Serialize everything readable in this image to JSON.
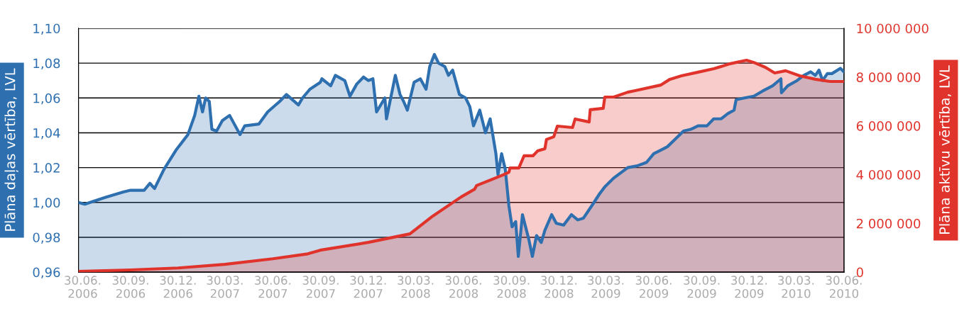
{
  "chart_data": {
    "type": "area",
    "ylabel": "Plāna daļas vērtība, LVL",
    "y2label": "Plāna aktīvu vērtība, LVL",
    "xlim": [
      "2006-06-22",
      "2010-06-30"
    ],
    "xticks": [
      {
        "value": "2006-06-30",
        "label": "30.06.\n2006"
      },
      {
        "value": "2006-09-30",
        "label": "30.09.\n2006"
      },
      {
        "value": "2006-12-30",
        "label": "30.12.\n2006"
      },
      {
        "value": "2007-03-30",
        "label": "30.03.\n2007"
      },
      {
        "value": "2007-06-30",
        "label": "30.06.\n2007"
      },
      {
        "value": "2007-09-30",
        "label": "30.09.\n2007"
      },
      {
        "value": "2007-12-30",
        "label": "30.12.\n2007"
      },
      {
        "value": "2008-03-30",
        "label": "30.03.\n2008"
      },
      {
        "value": "2008-06-30",
        "label": "30.06.\n2008"
      },
      {
        "value": "2008-09-30",
        "label": "30.09.\n2008"
      },
      {
        "value": "2008-12-30",
        "label": "30.12.\n2008"
      },
      {
        "value": "2009-03-30",
        "label": "30.03.\n2009"
      },
      {
        "value": "2009-06-30",
        "label": "30.06.\n2009"
      },
      {
        "value": "2009-09-30",
        "label": "30.09.\n2009"
      },
      {
        "value": "2009-12-30",
        "label": "30.12.\n2009"
      },
      {
        "value": "2010-03-30",
        "label": "30.03.\n2010"
      },
      {
        "value": "2010-06-30",
        "label": "30.06.\n2010"
      }
    ],
    "ylim": [
      0.96,
      1.1
    ],
    "yticks": [
      {
        "value": 0.96,
        "label": "0,96"
      },
      {
        "value": 0.98,
        "label": "0,98"
      },
      {
        "value": 1.0,
        "label": "1,00"
      },
      {
        "value": 1.02,
        "label": "1,02"
      },
      {
        "value": 1.04,
        "label": "1,04"
      },
      {
        "value": 1.06,
        "label": "1,06"
      },
      {
        "value": 1.08,
        "label": "1,08"
      },
      {
        "value": 1.1,
        "label": "1,10"
      }
    ],
    "y2lim": [
      0,
      10000000
    ],
    "y2ticks": [
      {
        "value": 0,
        "label": "0"
      },
      {
        "value": 2000000,
        "label": "2 000 000"
      },
      {
        "value": 4000000,
        "label": "4 000 000"
      },
      {
        "value": 6000000,
        "label": "6 000 000"
      },
      {
        "value": 8000000,
        "label": "8 000 000"
      },
      {
        "value": 10000000,
        "label": "10 000 000"
      }
    ],
    "grid": "y",
    "legend": false,
    "series": [
      {
        "color": "#2e6fb0",
        "axis": "y",
        "x": [
          "2006-06-22",
          "2006-07-04",
          "2006-08-13",
          "2006-09-16",
          "2006-09-30",
          "2006-10-26",
          "2006-11-06",
          "2006-11-15",
          "2006-12-03",
          "2006-12-26",
          "2007-01-18",
          "2007-01-31",
          "2007-02-08",
          "2007-02-15",
          "2007-02-21",
          "2007-02-28",
          "2007-03-05",
          "2007-03-14",
          "2007-03-25",
          "2007-04-08",
          "2007-04-28",
          "2007-05-07",
          "2007-06-03",
          "2007-06-20",
          "2007-07-13",
          "2007-07-26",
          "2007-08-18",
          "2007-08-26",
          "2007-09-09",
          "2007-09-29",
          "2007-10-02",
          "2007-10-19",
          "2007-10-28",
          "2007-11-15",
          "2007-11-25",
          "2007-12-08",
          "2007-12-21",
          "2007-12-30",
          "2008-01-08",
          "2008-01-15",
          "2008-01-31",
          "2008-02-03",
          "2008-02-20",
          "2008-02-29",
          "2008-03-07",
          "2008-03-14",
          "2008-03-27",
          "2008-04-08",
          "2008-04-19",
          "2008-04-26",
          "2008-05-05",
          "2008-05-13",
          "2008-05-25",
          "2008-06-01",
          "2008-06-09",
          "2008-06-22",
          "2008-07-04",
          "2008-07-12",
          "2008-07-19",
          "2008-07-31",
          "2008-08-11",
          "2008-08-20",
          "2008-08-31",
          "2008-09-04",
          "2008-09-11",
          "2008-09-18",
          "2008-09-25",
          "2008-10-01",
          "2008-10-08",
          "2008-10-13",
          "2008-10-21",
          "2008-11-02",
          "2008-11-09",
          "2008-11-17",
          "2008-11-26",
          "2008-12-03",
          "2008-12-16",
          "2008-12-25",
          "2009-01-08",
          "2009-01-23",
          "2009-02-04",
          "2009-02-15",
          "2009-03-05",
          "2009-03-18",
          "2009-03-28",
          "2009-04-14",
          "2009-05-11",
          "2009-05-29",
          "2009-06-16",
          "2009-06-30",
          "2009-07-13",
          "2009-07-26",
          "2009-08-09",
          "2009-08-26",
          "2009-09-09",
          "2009-09-23",
          "2009-10-10",
          "2009-10-23",
          "2009-11-06",
          "2009-11-19",
          "2009-12-01",
          "2009-12-05",
          "2009-12-21",
          "2010-01-08",
          "2010-01-25",
          "2010-02-13",
          "2010-03-01",
          "2010-03-02",
          "2010-03-14",
          "2010-04-01",
          "2010-04-14",
          "2010-04-27",
          "2010-05-06",
          "2010-05-13",
          "2010-05-20",
          "2010-05-29",
          "2010-06-07",
          "2010-06-23",
          "2010-06-30"
        ],
        "values": [
          1.0,
          0.999,
          1.003,
          1.006,
          1.007,
          1.007,
          1.011,
          1.008,
          1.019,
          1.03,
          1.039,
          1.05,
          1.061,
          1.052,
          1.06,
          1.058,
          1.042,
          1.041,
          1.047,
          1.05,
          1.039,
          1.044,
          1.045,
          1.052,
          1.058,
          1.062,
          1.056,
          1.06,
          1.065,
          1.069,
          1.071,
          1.067,
          1.073,
          1.07,
          1.061,
          1.068,
          1.072,
          1.07,
          1.071,
          1.052,
          1.06,
          1.048,
          1.073,
          1.062,
          1.058,
          1.053,
          1.069,
          1.071,
          1.065,
          1.078,
          1.085,
          1.08,
          1.078,
          1.073,
          1.076,
          1.062,
          1.06,
          1.055,
          1.044,
          1.053,
          1.04,
          1.048,
          1.028,
          1.016,
          1.028,
          1.019,
          0.998,
          0.986,
          0.989,
          0.969,
          0.993,
          0.979,
          0.969,
          0.981,
          0.977,
          0.984,
          0.993,
          0.988,
          0.987,
          0.993,
          0.99,
          0.991,
          0.999,
          1.005,
          1.009,
          1.014,
          1.02,
          1.021,
          1.023,
          1.028,
          1.03,
          1.032,
          1.036,
          1.041,
          1.042,
          1.044,
          1.044,
          1.048,
          1.048,
          1.051,
          1.053,
          1.059,
          1.06,
          1.061,
          1.064,
          1.067,
          1.071,
          1.063,
          1.067,
          1.07,
          1.073,
          1.075,
          1.073,
          1.076,
          1.07,
          1.074,
          1.074,
          1.077,
          1.075
        ]
      },
      {
        "color": "#e0332b",
        "axis": "y2",
        "x": [
          "2006-06-22",
          "2006-09-30",
          "2006-12-30",
          "2007-03-30",
          "2007-06-30",
          "2007-09-05",
          "2007-09-29",
          "2007-12-30",
          "2008-03-19",
          "2008-05-02",
          "2008-06-25",
          "2008-07-21",
          "2008-07-25",
          "2008-09-13",
          "2008-09-25",
          "2008-09-27",
          "2008-10-14",
          "2008-10-24",
          "2008-11-10",
          "2008-11-19",
          "2008-12-03",
          "2008-12-06",
          "2008-12-20",
          "2008-12-27",
          "2009-01-25",
          "2009-01-30",
          "2009-02-26",
          "2009-02-28",
          "2009-03-25",
          "2009-03-28",
          "2009-04-14",
          "2009-05-11",
          "2009-05-25",
          "2009-07-13",
          "2009-07-31",
          "2009-08-22",
          "2009-09-23",
          "2009-10-23",
          "2009-11-24",
          "2009-12-25",
          "2010-01-08",
          "2010-01-30",
          "2010-02-17",
          "2010-03-10",
          "2010-04-06",
          "2010-05-06",
          "2010-06-03",
          "2010-06-30"
        ],
        "values": [
          30000,
          90000,
          170000,
          320000,
          550000,
          750000,
          900000,
          1220000,
          1570000,
          2300000,
          3080000,
          3400000,
          3550000,
          3980000,
          4100000,
          4270000,
          4270000,
          4770000,
          4770000,
          4970000,
          5060000,
          5440000,
          5550000,
          5990000,
          5930000,
          6280000,
          6160000,
          6660000,
          6720000,
          7180000,
          7180000,
          7380000,
          7440000,
          7670000,
          7910000,
          8050000,
          8200000,
          8340000,
          8550000,
          8690000,
          8600000,
          8400000,
          8170000,
          8260000,
          8050000,
          7910000,
          7820000,
          7820000
        ]
      }
    ]
  }
}
